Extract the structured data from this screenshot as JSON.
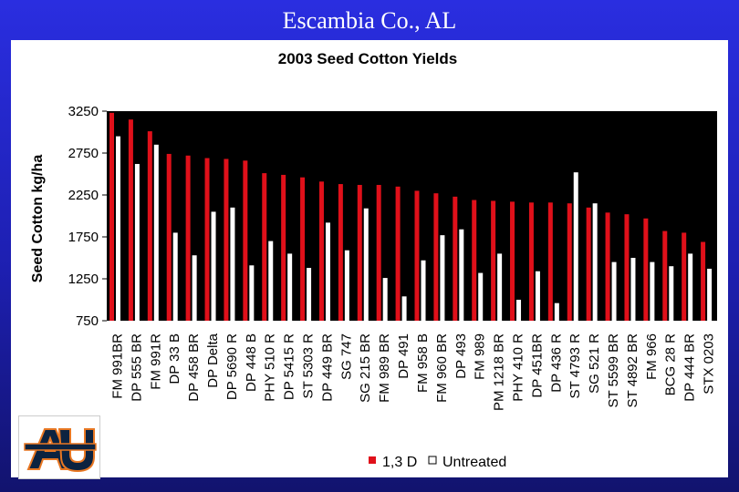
{
  "slide_title": "Escambia Co., AL",
  "colors": {
    "series_1": "#e0101a",
    "series_2": "#ffffff",
    "plot_bg": "#000000",
    "panel_bg": "#ffffff",
    "logo_blue": "#0c2340",
    "logo_orange": "#e87722"
  },
  "logo": {
    "name": "auburn-au-logo",
    "text": "AU"
  },
  "chart_data": {
    "type": "bar",
    "title": "2003 Seed Cotton Yields",
    "ylabel": "Seed Cotton kg/ha",
    "ylim": [
      750,
      3250
    ],
    "yticks": [
      "3250",
      "2750",
      "2250",
      "1750",
      "1250",
      "750"
    ],
    "legend_position": "bottom-center",
    "categories": [
      "FM 991BR",
      "DP 555 BR",
      "FM 991R",
      "DP 33 B",
      "DP 458 BR",
      "DP Delta",
      "DP 5690 R",
      "DP 448 B",
      "PHY 510 R",
      "DP 5415 R",
      "ST 5303 R",
      "DP 449 BR",
      "SG 747",
      "SG 215 BR",
      "FM 989 BR",
      "DP 491",
      "FM 958 B",
      "FM 960 BR",
      "DP 493",
      "FM 989",
      "PM 1218 BR",
      "PHY 410 R",
      "DP 451BR",
      "DP 436 R",
      "ST 4793 R",
      "SG 521 R",
      "ST 5599 BR",
      "ST 4892 BR",
      "FM 966",
      "BCG 28 R",
      "DP 444 BR",
      "STX 0203"
    ],
    "series": [
      {
        "name": "1,3 D",
        "values": [
          3230,
          3150,
          3010,
          2740,
          2720,
          2690,
          2680,
          2660,
          2510,
          2490,
          2460,
          2410,
          2380,
          2370,
          2370,
          2350,
          2300,
          2270,
          2230,
          2190,
          2180,
          2170,
          2160,
          2160,
          2150,
          2100,
          2040,
          2020,
          1970,
          1820,
          1800,
          1690
        ]
      },
      {
        "name": "Untreated",
        "values": [
          2950,
          2620,
          2850,
          1800,
          1530,
          2050,
          2100,
          1410,
          1700,
          1550,
          1380,
          1920,
          1590,
          2090,
          1260,
          1040,
          1470,
          1770,
          1840,
          1320,
          1550,
          1000,
          1340,
          960,
          2520,
          2150,
          1450,
          1500,
          1450,
          1400,
          1550,
          1370
        ]
      }
    ]
  }
}
